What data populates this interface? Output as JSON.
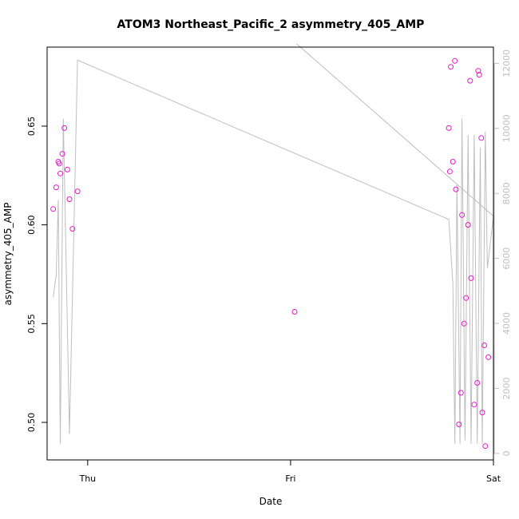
{
  "chart_data": {
    "type": "scatter",
    "title": "ATOM3 Northeast_Pacific_2 asymmetry_405_AMP",
    "xlabel": "Date",
    "ylabel": "asymmetry_405_AMP",
    "x_ticks": [
      "Thu",
      "Fri",
      "Sat"
    ],
    "y_ticks": [
      "0.50",
      "0.55",
      "0.60",
      "0.65"
    ],
    "y2_ticks": [
      "0",
      "2000",
      "4000",
      "6000",
      "8000",
      "10000",
      "12000"
    ],
    "xlim_days": [
      -0.2,
      2.0
    ],
    "ylim": [
      0.481,
      0.69
    ],
    "y2lim": [
      -200,
      12500
    ],
    "colors": {
      "points": "#e81ccb",
      "line": "#bebebe",
      "right_axis": "#bebebe",
      "frame": "#000000"
    },
    "series": [
      {
        "type": "scatter",
        "axis": "left",
        "points": [
          {
            "x": -0.17,
            "y": 0.608
          },
          {
            "x": -0.155,
            "y": 0.619
          },
          {
            "x": -0.145,
            "y": 0.632
          },
          {
            "x": -0.14,
            "y": 0.631
          },
          {
            "x": -0.135,
            "y": 0.626
          },
          {
            "x": -0.125,
            "y": 0.636
          },
          {
            "x": -0.115,
            "y": 0.649
          },
          {
            "x": -0.1,
            "y": 0.628
          },
          {
            "x": -0.09,
            "y": 0.613
          },
          {
            "x": -0.075,
            "y": 0.598
          },
          {
            "x": -0.05,
            "y": 0.617
          },
          {
            "x": 1.02,
            "y": 0.556
          },
          {
            "x": 1.78,
            "y": 0.649
          },
          {
            "x": 1.785,
            "y": 0.627
          },
          {
            "x": 1.79,
            "y": 0.68
          },
          {
            "x": 1.8,
            "y": 0.632
          },
          {
            "x": 1.81,
            "y": 0.683
          },
          {
            "x": 1.815,
            "y": 0.618
          },
          {
            "x": 1.83,
            "y": 0.499
          },
          {
            "x": 1.84,
            "y": 0.515
          },
          {
            "x": 1.845,
            "y": 0.605
          },
          {
            "x": 1.855,
            "y": 0.55
          },
          {
            "x": 1.865,
            "y": 0.563
          },
          {
            "x": 1.875,
            "y": 0.6
          },
          {
            "x": 1.885,
            "y": 0.673
          },
          {
            "x": 1.89,
            "y": 0.573
          },
          {
            "x": 1.905,
            "y": 0.509
          },
          {
            "x": 1.92,
            "y": 0.52
          },
          {
            "x": 1.925,
            "y": 0.678
          },
          {
            "x": 1.93,
            "y": 0.676
          },
          {
            "x": 1.94,
            "y": 0.644
          },
          {
            "x": 1.945,
            "y": 0.505
          },
          {
            "x": 1.955,
            "y": 0.539
          },
          {
            "x": 1.96,
            "y": 0.488
          },
          {
            "x": 1.975,
            "y": 0.533
          }
        ]
      },
      {
        "type": "line",
        "axis": "right",
        "points": [
          {
            "x": -0.17,
            "y": 4800
          },
          {
            "x": -0.155,
            "y": 5500
          },
          {
            "x": -0.145,
            "y": 7800
          },
          {
            "x": -0.135,
            "y": 300
          },
          {
            "x": -0.12,
            "y": 10300
          },
          {
            "x": -0.09,
            "y": 600
          },
          {
            "x": -0.05,
            "y": 12100
          },
          {
            "x": 1.78,
            "y": 7200
          },
          {
            "x": 1.8,
            "y": 5200
          },
          {
            "x": 1.81,
            "y": 300
          },
          {
            "x": 1.82,
            "y": 8300
          },
          {
            "x": 1.835,
            "y": 300
          },
          {
            "x": 1.845,
            "y": 10300
          },
          {
            "x": 1.86,
            "y": 400
          },
          {
            "x": 1.875,
            "y": 9800
          },
          {
            "x": 1.89,
            "y": 300
          },
          {
            "x": 1.905,
            "y": 9800
          },
          {
            "x": 1.92,
            "y": 300
          },
          {
            "x": 1.935,
            "y": 9400
          },
          {
            "x": 1.945,
            "y": 300
          },
          {
            "x": 1.96,
            "y": 9900
          },
          {
            "x": 1.97,
            "y": 5700
          },
          {
            "x": 2.0,
            "y": 7300
          },
          {
            "x": 1.03,
            "y": 12600
          }
        ]
      }
    ]
  }
}
